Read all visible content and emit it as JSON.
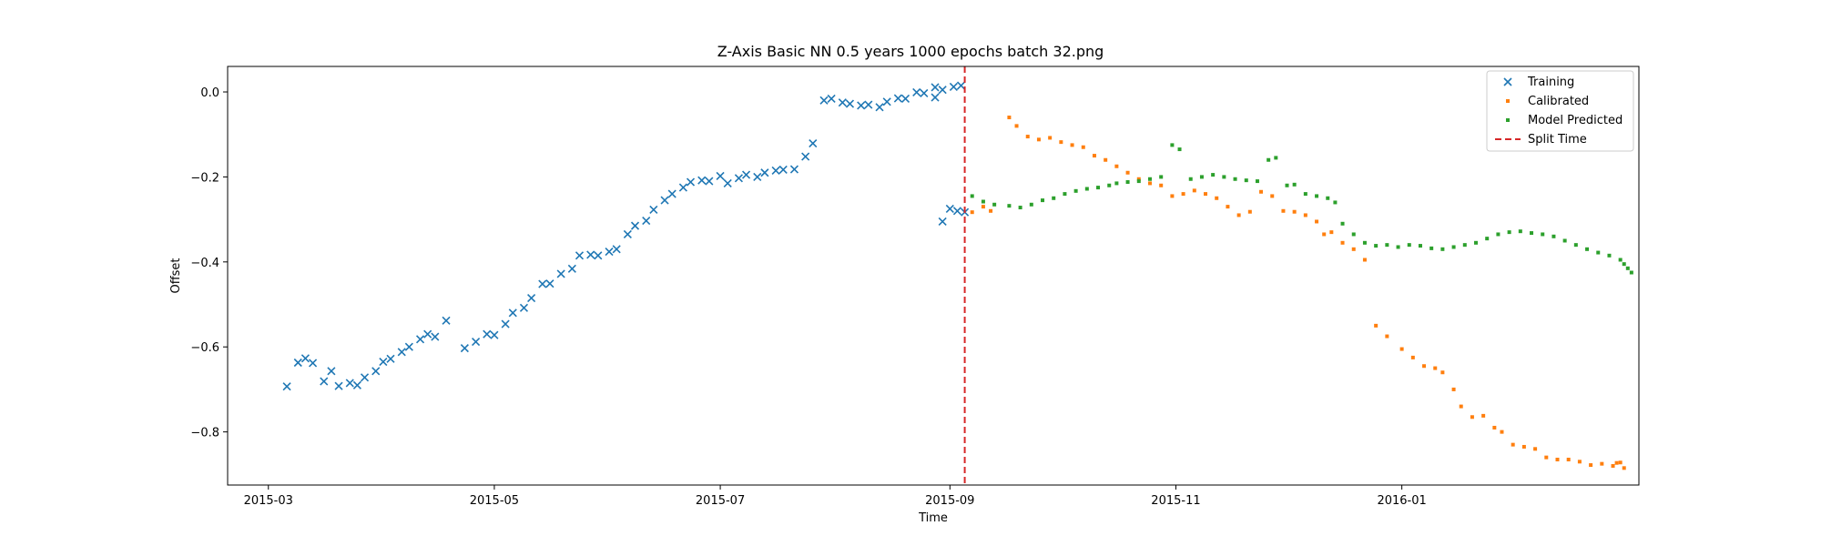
{
  "chart_data": {
    "type": "scatter",
    "title": "Z-Axis Basic NN 0.5 years 1000 epochs batch 32.png",
    "xlabel": "Time",
    "ylabel": "Offset",
    "xlim": [
      "2015-02-18",
      "2016-03-05"
    ],
    "ylim": [
      -0.925,
      0.06
    ],
    "x_ticks": [
      "2015-03",
      "2015-05",
      "2015-07",
      "2015-09",
      "2015-11",
      "2016-01"
    ],
    "y_ticks": [
      "0.0",
      "−0.2",
      "−0.4",
      "−0.6",
      "−0.8"
    ],
    "grid": false,
    "legend": "top-right",
    "split_time": "2015-09-05",
    "series": [
      {
        "name": "Training",
        "marker": "x",
        "color": "#1f77b4",
        "points": [
          [
            "2015-03-06",
            -0.693
          ],
          [
            "2015-03-09",
            -0.637
          ],
          [
            "2015-03-11",
            -0.627
          ],
          [
            "2015-03-13",
            -0.638
          ],
          [
            "2015-03-16",
            -0.681
          ],
          [
            "2015-03-18",
            -0.657
          ],
          [
            "2015-03-20",
            -0.692
          ],
          [
            "2015-03-23",
            -0.685
          ],
          [
            "2015-03-25",
            -0.69
          ],
          [
            "2015-03-27",
            -0.672
          ],
          [
            "2015-03-30",
            -0.657
          ],
          [
            "2015-04-01",
            -0.635
          ],
          [
            "2015-04-03",
            -0.628
          ],
          [
            "2015-04-06",
            -0.612
          ],
          [
            "2015-04-08",
            -0.6
          ],
          [
            "2015-04-11",
            -0.582
          ],
          [
            "2015-04-13",
            -0.57
          ],
          [
            "2015-04-15",
            -0.576
          ],
          [
            "2015-04-18",
            -0.538
          ],
          [
            "2015-04-23",
            -0.603
          ],
          [
            "2015-04-26",
            -0.588
          ],
          [
            "2015-04-29",
            -0.57
          ],
          [
            "2015-05-01",
            -0.572
          ],
          [
            "2015-05-04",
            -0.546
          ],
          [
            "2015-05-06",
            -0.52
          ],
          [
            "2015-05-09",
            -0.508
          ],
          [
            "2015-05-11",
            -0.485
          ],
          [
            "2015-05-14",
            -0.452
          ],
          [
            "2015-05-16",
            -0.451
          ],
          [
            "2015-05-19",
            -0.428
          ],
          [
            "2015-05-22",
            -0.416
          ],
          [
            "2015-05-24",
            -0.385
          ],
          [
            "2015-05-27",
            -0.383
          ],
          [
            "2015-05-29",
            -0.385
          ],
          [
            "2015-06-01",
            -0.376
          ],
          [
            "2015-06-03",
            -0.37
          ],
          [
            "2015-06-06",
            -0.335
          ],
          [
            "2015-06-08",
            -0.315
          ],
          [
            "2015-06-11",
            -0.303
          ],
          [
            "2015-06-13",
            -0.277
          ],
          [
            "2015-06-16",
            -0.255
          ],
          [
            "2015-06-18",
            -0.24
          ],
          [
            "2015-06-21",
            -0.225
          ],
          [
            "2015-06-23",
            -0.212
          ],
          [
            "2015-06-26",
            -0.208
          ],
          [
            "2015-06-28",
            -0.21
          ],
          [
            "2015-07-01",
            -0.198
          ],
          [
            "2015-07-03",
            -0.215
          ],
          [
            "2015-07-06",
            -0.203
          ],
          [
            "2015-07-08",
            -0.195
          ],
          [
            "2015-07-11",
            -0.2
          ],
          [
            "2015-07-13",
            -0.19
          ],
          [
            "2015-07-16",
            -0.185
          ],
          [
            "2015-07-18",
            -0.183
          ],
          [
            "2015-07-21",
            -0.182
          ],
          [
            "2015-07-24",
            -0.152
          ],
          [
            "2015-07-26",
            -0.121
          ],
          [
            "2015-07-29",
            -0.02
          ],
          [
            "2015-07-31",
            -0.016
          ],
          [
            "2015-08-03",
            -0.025
          ],
          [
            "2015-08-05",
            -0.028
          ],
          [
            "2015-08-08",
            -0.032
          ],
          [
            "2015-08-10",
            -0.03
          ],
          [
            "2015-08-13",
            -0.036
          ],
          [
            "2015-08-15",
            -0.023
          ],
          [
            "2015-08-18",
            -0.015
          ],
          [
            "2015-08-20",
            -0.016
          ],
          [
            "2015-08-23",
            -0.001
          ],
          [
            "2015-08-25",
            -0.003
          ],
          [
            "2015-08-28",
            0.011
          ],
          [
            "2015-08-30",
            0.005
          ],
          [
            "2015-09-02",
            0.012
          ],
          [
            "2015-09-04",
            0.015
          ],
          [
            "2015-08-28",
            -0.013
          ],
          [
            "2015-08-30",
            -0.305
          ],
          [
            "2015-09-01",
            -0.275
          ],
          [
            "2015-09-03",
            -0.28
          ],
          [
            "2015-09-05",
            -0.283
          ]
        ]
      },
      {
        "name": "Calibrated",
        "marker": "dot",
        "color": "#ff7f0e",
        "points": [
          [
            "2015-09-07",
            -0.283
          ],
          [
            "2015-09-10",
            -0.27
          ],
          [
            "2015-09-12",
            -0.28
          ],
          [
            "2015-09-17",
            -0.06
          ],
          [
            "2015-09-19",
            -0.08
          ],
          [
            "2015-09-22",
            -0.105
          ],
          [
            "2015-09-25",
            -0.112
          ],
          [
            "2015-09-28",
            -0.108
          ],
          [
            "2015-10-01",
            -0.118
          ],
          [
            "2015-10-04",
            -0.125
          ],
          [
            "2015-10-07",
            -0.13
          ],
          [
            "2015-10-10",
            -0.15
          ],
          [
            "2015-10-13",
            -0.16
          ],
          [
            "2015-10-16",
            -0.175
          ],
          [
            "2015-10-19",
            -0.19
          ],
          [
            "2015-10-22",
            -0.205
          ],
          [
            "2015-10-25",
            -0.215
          ],
          [
            "2015-10-28",
            -0.22
          ],
          [
            "2015-10-31",
            -0.245
          ],
          [
            "2015-11-03",
            -0.24
          ],
          [
            "2015-11-06",
            -0.232
          ],
          [
            "2015-11-09",
            -0.24
          ],
          [
            "2015-11-12",
            -0.25
          ],
          [
            "2015-11-15",
            -0.27
          ],
          [
            "2015-11-18",
            -0.29
          ],
          [
            "2015-11-21",
            -0.282
          ],
          [
            "2015-11-24",
            -0.235
          ],
          [
            "2015-11-27",
            -0.245
          ],
          [
            "2015-11-30",
            -0.28
          ],
          [
            "2015-12-03",
            -0.282
          ],
          [
            "2015-12-06",
            -0.29
          ],
          [
            "2015-12-09",
            -0.305
          ],
          [
            "2015-12-11",
            -0.335
          ],
          [
            "2015-12-13",
            -0.33
          ],
          [
            "2015-12-16",
            -0.355
          ],
          [
            "2015-12-19",
            -0.37
          ],
          [
            "2015-12-22",
            -0.395
          ],
          [
            "2015-12-25",
            -0.55
          ],
          [
            "2015-12-28",
            -0.575
          ],
          [
            "2016-01-01",
            -0.605
          ],
          [
            "2016-01-04",
            -0.625
          ],
          [
            "2016-01-07",
            -0.645
          ],
          [
            "2016-01-10",
            -0.65
          ],
          [
            "2016-01-12",
            -0.66
          ],
          [
            "2016-01-15",
            -0.7
          ],
          [
            "2016-01-17",
            -0.74
          ],
          [
            "2016-01-20",
            -0.765
          ],
          [
            "2016-01-23",
            -0.762
          ],
          [
            "2016-01-26",
            -0.79
          ],
          [
            "2016-01-28",
            -0.8
          ],
          [
            "2016-01-31",
            -0.83
          ],
          [
            "2016-02-03",
            -0.835
          ],
          [
            "2016-02-06",
            -0.84
          ],
          [
            "2016-02-09",
            -0.86
          ],
          [
            "2016-02-12",
            -0.865
          ],
          [
            "2016-02-15",
            -0.865
          ],
          [
            "2016-02-18",
            -0.87
          ],
          [
            "2016-02-21",
            -0.878
          ],
          [
            "2016-02-24",
            -0.875
          ],
          [
            "2016-02-27",
            -0.88
          ],
          [
            "2016-02-29",
            -0.872
          ],
          [
            "2016-02-28",
            -0.873
          ],
          [
            "2016-03-01",
            -0.885
          ]
        ]
      },
      {
        "name": "Model Predicted",
        "marker": "dot",
        "color": "#2ca02c",
        "points": [
          [
            "2015-09-07",
            -0.245
          ],
          [
            "2015-09-10",
            -0.258
          ],
          [
            "2015-09-13",
            -0.265
          ],
          [
            "2015-09-17",
            -0.268
          ],
          [
            "2015-09-20",
            -0.272
          ],
          [
            "2015-09-23",
            -0.265
          ],
          [
            "2015-09-26",
            -0.255
          ],
          [
            "2015-09-29",
            -0.25
          ],
          [
            "2015-10-02",
            -0.24
          ],
          [
            "2015-10-05",
            -0.233
          ],
          [
            "2015-10-08",
            -0.228
          ],
          [
            "2015-10-11",
            -0.225
          ],
          [
            "2015-10-14",
            -0.22
          ],
          [
            "2015-10-16",
            -0.215
          ],
          [
            "2015-10-19",
            -0.212
          ],
          [
            "2015-10-22",
            -0.21
          ],
          [
            "2015-10-25",
            -0.205
          ],
          [
            "2015-10-28",
            -0.2
          ],
          [
            "2015-10-31",
            -0.125
          ],
          [
            "2015-11-02",
            -0.135
          ],
          [
            "2015-11-05",
            -0.205
          ],
          [
            "2015-11-08",
            -0.2
          ],
          [
            "2015-11-11",
            -0.195
          ],
          [
            "2015-11-14",
            -0.2
          ],
          [
            "2015-11-17",
            -0.205
          ],
          [
            "2015-11-20",
            -0.208
          ],
          [
            "2015-11-23",
            -0.21
          ],
          [
            "2015-11-26",
            -0.16
          ],
          [
            "2015-11-28",
            -0.155
          ],
          [
            "2015-12-01",
            -0.22
          ],
          [
            "2015-12-03",
            -0.218
          ],
          [
            "2015-12-06",
            -0.24
          ],
          [
            "2015-12-09",
            -0.245
          ],
          [
            "2015-12-12",
            -0.25
          ],
          [
            "2015-12-14",
            -0.26
          ],
          [
            "2015-12-16",
            -0.31
          ],
          [
            "2015-12-19",
            -0.335
          ],
          [
            "2015-12-22",
            -0.355
          ],
          [
            "2015-12-25",
            -0.362
          ],
          [
            "2015-12-28",
            -0.36
          ],
          [
            "2015-12-31",
            -0.365
          ],
          [
            "2016-01-03",
            -0.36
          ],
          [
            "2016-01-06",
            -0.362
          ],
          [
            "2016-01-09",
            -0.368
          ],
          [
            "2016-01-12",
            -0.37
          ],
          [
            "2016-01-15",
            -0.365
          ],
          [
            "2016-01-18",
            -0.36
          ],
          [
            "2016-01-21",
            -0.355
          ],
          [
            "2016-01-24",
            -0.345
          ],
          [
            "2016-01-27",
            -0.335
          ],
          [
            "2016-01-30",
            -0.33
          ],
          [
            "2016-02-02",
            -0.328
          ],
          [
            "2016-02-05",
            -0.332
          ],
          [
            "2016-02-08",
            -0.335
          ],
          [
            "2016-02-11",
            -0.34
          ],
          [
            "2016-02-14",
            -0.35
          ],
          [
            "2016-02-17",
            -0.36
          ],
          [
            "2016-02-20",
            -0.37
          ],
          [
            "2016-02-23",
            -0.378
          ],
          [
            "2016-02-26",
            -0.385
          ],
          [
            "2016-02-29",
            -0.395
          ],
          [
            "2016-03-01",
            -0.405
          ],
          [
            "2016-03-02",
            -0.415
          ],
          [
            "2016-03-03",
            -0.425
          ]
        ]
      }
    ],
    "legend_entries": [
      "Training",
      "Calibrated",
      "Model Predicted",
      "Split Time"
    ],
    "split_color": "#d62728"
  }
}
